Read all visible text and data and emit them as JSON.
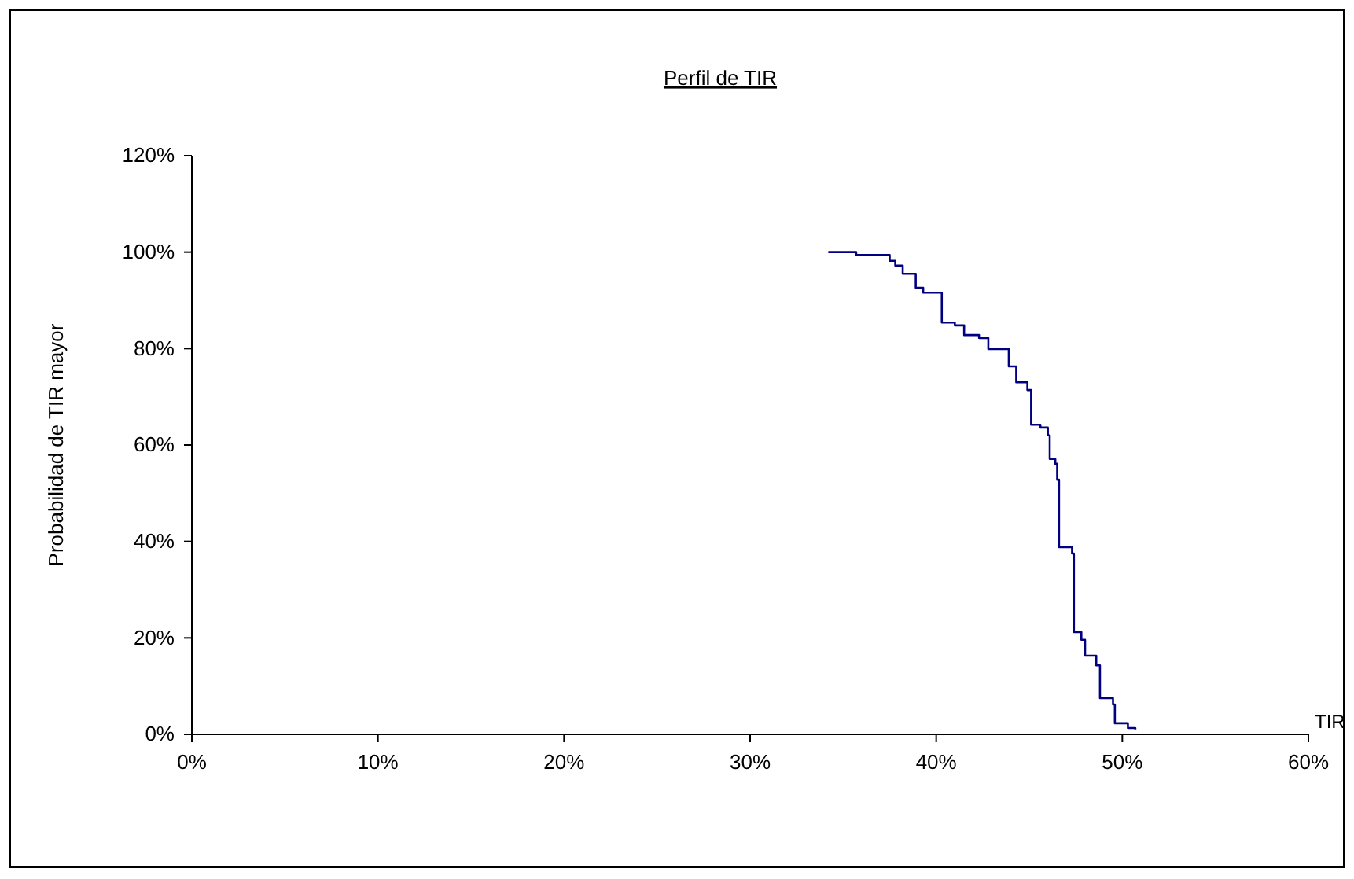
{
  "chart_data": {
    "type": "step",
    "title": "Perfil de TIR",
    "xlabel": "TIR",
    "ylabel": "Probabilidad de TIR mayor",
    "xlim": [
      0,
      60
    ],
    "ylim": [
      0,
      120
    ],
    "xticks": [
      {
        "value": 0,
        "label": "0%"
      },
      {
        "value": 10,
        "label": "10%"
      },
      {
        "value": 20,
        "label": "20%"
      },
      {
        "value": 30,
        "label": "30%"
      },
      {
        "value": 40,
        "label": "40%"
      },
      {
        "value": 50,
        "label": "50%"
      },
      {
        "value": 60,
        "label": "60%"
      }
    ],
    "yticks": [
      {
        "value": 0,
        "label": "0%"
      },
      {
        "value": 20,
        "label": "20%"
      },
      {
        "value": 40,
        "label": "40%"
      },
      {
        "value": 60,
        "label": "60%"
      },
      {
        "value": 80,
        "label": "80%"
      },
      {
        "value": 100,
        "label": "100%"
      },
      {
        "value": 120,
        "label": "120%"
      }
    ],
    "grid": false,
    "marker": "none",
    "line_style": "solid",
    "series": [
      {
        "color": "#000080",
        "x": [
          34.2,
          35.7,
          37.5,
          37.8,
          38.2,
          38.9,
          39.3,
          40.3,
          41.0,
          41.5,
          42.3,
          42.8,
          43.9,
          44.3,
          44.9,
          45.1,
          45.6,
          46.0,
          46.1,
          46.4,
          46.5,
          46.6,
          47.3,
          47.4,
          47.8,
          48.0,
          48.6,
          48.8,
          49.5,
          49.6,
          50.3,
          50.7
        ],
        "values": [
          100,
          99.4,
          98.2,
          97.2,
          95.5,
          92.6,
          91.6,
          85.4,
          84.8,
          82.8,
          82.2,
          79.9,
          76.3,
          73.0,
          71.4,
          64.2,
          63.6,
          62.0,
          57.1,
          56.1,
          52.8,
          38.8,
          37.5,
          21.2,
          19.6,
          16.3,
          14.3,
          7.5,
          6.2,
          2.3,
          1.3,
          1.0
        ]
      }
    ]
  }
}
